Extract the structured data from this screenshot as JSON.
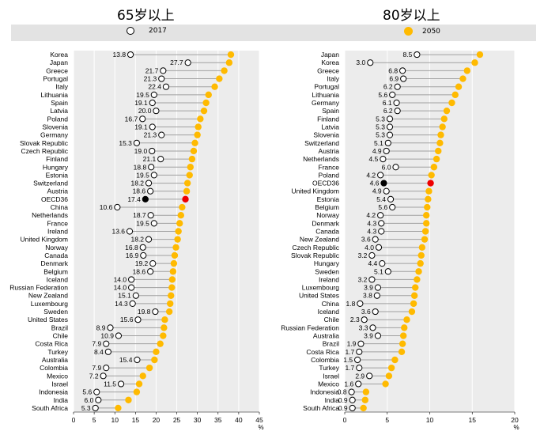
{
  "legend": {
    "label_2017": "2017",
    "label_2050": "2050",
    "color_2017": "#ffffff",
    "color_2050": "#ffba00",
    "oecd_2017_color": "#000000",
    "oecd_2050_color": "#ee0000"
  },
  "chart_data": [
    {
      "type": "dot-plot",
      "title": "65岁以上",
      "xlabel": "%",
      "xlim": [
        0,
        45
      ],
      "xticks": [
        0,
        5,
        10,
        15,
        20,
        25,
        30,
        35,
        40,
        45
      ],
      "grid": true,
      "categories": [
        "Korea",
        "Japan",
        "Greece",
        "Portugal",
        "Italy",
        "Lithuania",
        "Spain",
        "Latvia",
        "Poland",
        "Slovenia",
        "Germany",
        "Slovak Republic",
        "Czech Republic",
        "Finland",
        "Hungary",
        "Estonia",
        "Switzerland",
        "Austria",
        "OECD36",
        "China",
        "Netherlands",
        "France",
        "Ireland",
        "United Kingdom",
        "Norway",
        "Canada",
        "Denmark",
        "Belgium",
        "Iceland",
        "Russian Federation",
        "New Zealand",
        "Luxembourg",
        "Sweden",
        "United States",
        "Brazil",
        "Chile",
        "Costa Rica",
        "Turkey",
        "Australia",
        "Colombia",
        "Mexico",
        "Israel",
        "Indonesia",
        "India",
        "South Africa"
      ],
      "series": [
        {
          "name": "2017",
          "values": [
            13.8,
            27.7,
            21.7,
            21.3,
            22.4,
            19.5,
            19.1,
            20.0,
            16.7,
            19.1,
            21.3,
            15.3,
            19.0,
            21.1,
            18.8,
            19.5,
            18.2,
            18.6,
            17.4,
            10.6,
            18.7,
            19.5,
            13.6,
            18.2,
            16.8,
            16.9,
            19.2,
            18.6,
            14.0,
            14.0,
            15.1,
            14.3,
            19.8,
            15.6,
            8.9,
            10.9,
            7.9,
            8.4,
            15.4,
            7.9,
            7.2,
            11.5,
            5.6,
            6.0,
            5.3
          ]
        },
        {
          "name": "2050",
          "values": [
            38.1,
            37.7,
            36.5,
            35.3,
            34.2,
            32.7,
            32.1,
            31.6,
            30.7,
            30.2,
            30.0,
            29.4,
            29.1,
            28.7,
            28.3,
            28.1,
            27.6,
            27.4,
            27.1,
            26.3,
            26.0,
            25.7,
            25.4,
            25.2,
            24.8,
            24.5,
            24.3,
            24.1,
            23.9,
            23.8,
            23.6,
            23.4,
            23.2,
            22.1,
            21.9,
            21.7,
            21.0,
            20.0,
            19.6,
            18.4,
            16.8,
            15.9,
            15.3,
            13.3,
            10.8
          ]
        }
      ]
    },
    {
      "type": "dot-plot",
      "title": "80岁以上",
      "xlabel": "%",
      "xlim": [
        0,
        20
      ],
      "xticks": [
        0,
        5,
        10,
        15,
        20
      ],
      "grid": true,
      "categories": [
        "Japan",
        "Korea",
        "Greece",
        "Italy",
        "Portugal",
        "Lithuania",
        "Germany",
        "Spain",
        "Finland",
        "Latvia",
        "Slovenia",
        "Switzerland",
        "Austria",
        "Netherlands",
        "France",
        "Poland",
        "OECD36",
        "United Kingdom",
        "Estonia",
        "Belgium",
        "Norway",
        "Denmark",
        "Canada",
        "New Zealand",
        "Czech Republic",
        "Slovak Republic",
        "Hungary",
        "Sweden",
        "Ireland",
        "Luxembourg",
        "United States",
        "China",
        "Iceland",
        "Chile",
        "Russian Federation",
        "Australia",
        "Brazil",
        "Costa Rica",
        "Colombia",
        "Turkey",
        "Israel",
        "Mexico",
        "Indonesia",
        "India",
        "South Africa"
      ],
      "series": [
        {
          "name": "2017",
          "values": [
            8.5,
            3.0,
            6.8,
            6.9,
            6.2,
            5.6,
            6.1,
            6.2,
            5.3,
            5.3,
            5.3,
            5.1,
            4.9,
            4.5,
            6.0,
            4.2,
            4.6,
            4.9,
            5.4,
            5.6,
            4.2,
            4.3,
            4.3,
            3.6,
            4.0,
            3.2,
            4.4,
            5.1,
            3.2,
            3.9,
            3.8,
            1.8,
            3.6,
            2.3,
            3.3,
            3.9,
            1.9,
            1.7,
            1.5,
            1.7,
            2.9,
            1.6,
            0.8,
            0.9,
            0.9
          ]
        },
        {
          "name": "2050",
          "values": [
            15.9,
            15.3,
            14.4,
            13.9,
            13.4,
            13.0,
            12.6,
            12.0,
            11.7,
            11.5,
            11.3,
            11.2,
            11.0,
            10.8,
            10.5,
            10.2,
            10.1,
            9.9,
            9.8,
            9.7,
            9.6,
            9.6,
            9.5,
            9.4,
            9.1,
            9.0,
            8.9,
            8.7,
            8.5,
            8.3,
            8.2,
            8.1,
            7.9,
            7.3,
            7.0,
            6.9,
            6.8,
            6.7,
            5.9,
            5.5,
            5.2,
            4.8,
            2.5,
            2.4,
            2.2
          ]
        }
      ]
    }
  ]
}
